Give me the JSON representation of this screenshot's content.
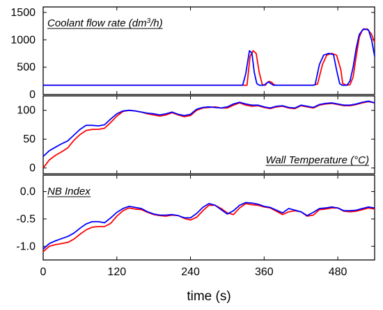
{
  "chart_data": {
    "type": "line",
    "xlabel": "time (s)",
    "x_ticks": [
      0,
      120,
      240,
      360,
      480
    ],
    "xlim": [
      0,
      540
    ],
    "series_colors": {
      "series_a": "#ff0000",
      "series_b": "#0000ff"
    },
    "panels": [
      {
        "id": "coolant",
        "title_html": "Coolant flow rate (dm<tspan baseline-shift=\"super\" font-size=\"10\">3</tspan>/h)",
        "title_text": "Coolant flow rate (dm3/h)",
        "title_position": "top-left",
        "ylim": [
          0,
          1600
        ],
        "y_ticks": [
          0,
          500,
          1000,
          1500
        ],
        "series": [
          {
            "color": "#ff0000",
            "x": [
              0,
              100,
              200,
              300,
              332,
              337,
              342,
              347,
              352,
              357,
              362,
              365,
              368,
              372,
              376,
              380,
              440,
              447,
              455,
              462,
              470,
              478,
              485,
              488,
              495,
              500,
              505,
              510,
              515,
              520,
              528,
              535,
              540
            ],
            "y": [
              170,
              170,
              170,
              170,
              170,
              700,
              800,
              750,
              400,
              180,
              170,
              220,
              240,
              225,
              180,
              170,
              170,
              190,
              550,
              720,
              750,
              720,
              450,
              200,
              170,
              180,
              320,
              700,
              1050,
              1180,
              1200,
              1100,
              950
            ]
          },
          {
            "color": "#0000ff",
            "x": [
              0,
              100,
              200,
              300,
              325,
              330,
              336,
              340,
              344,
              348,
              352,
              360,
              363,
              367,
              371,
              375,
              440,
              443,
              450,
              457,
              465,
              473,
              478,
              483,
              487,
              495,
              500,
              505,
              510,
              515,
              522,
              530,
              535,
              540
            ],
            "y": [
              170,
              170,
              170,
              170,
              170,
              380,
              800,
              760,
              400,
              200,
              170,
              170,
              200,
              230,
              200,
              170,
              170,
              180,
              550,
              720,
              750,
              730,
              450,
              200,
              170,
              170,
              250,
              500,
              850,
              1100,
              1200,
              1180,
              1000,
              700
            ]
          }
        ]
      },
      {
        "id": "wall-temp",
        "title_text": "Wall Temperature (°C)",
        "title_position": "bottom-right",
        "ylim": [
          -10,
          125
        ],
        "y_ticks": [
          0,
          50,
          100
        ],
        "series": [
          {
            "color": "#ff0000",
            "x": [
              0,
              10,
              20,
              30,
              40,
              50,
              60,
              70,
              80,
              90,
              100,
              110,
              120,
              130,
              140,
              150,
              160,
              170,
              180,
              190,
              200,
              210,
              220,
              230,
              240,
              250,
              260,
              270,
              280,
              290,
              300,
              310,
              320,
              330,
              340,
              350,
              360,
              370,
              380,
              390,
              400,
              410,
              420,
              430,
              440,
              450,
              460,
              470,
              480,
              490,
              500,
              510,
              520,
              530,
              540
            ],
            "y": [
              0,
              14,
              22,
              28,
              35,
              48,
              58,
              65,
              67,
              67,
              69,
              79,
              90,
              98,
              100,
              99,
              97,
              94,
              92,
              90,
              92,
              96,
              92,
              89,
              91,
              100,
              104,
              105,
              106,
              104,
              104,
              109,
              113,
              109,
              107,
              108,
              105,
              103,
              106,
              107,
              104,
              103,
              108,
              106,
              104,
              109,
              111,
              112,
              110,
              108,
              108,
              110,
              113,
              115,
              113
            ]
          },
          {
            "color": "#0000ff",
            "x": [
              0,
              10,
              20,
              30,
              40,
              50,
              60,
              70,
              80,
              90,
              100,
              110,
              120,
              130,
              140,
              150,
              160,
              170,
              180,
              190,
              200,
              210,
              220,
              230,
              240,
              250,
              260,
              270,
              280,
              290,
              300,
              310,
              320,
              330,
              340,
              350,
              360,
              370,
              380,
              390,
              400,
              410,
              420,
              430,
              440,
              450,
              460,
              470,
              480,
              490,
              500,
              510,
              520,
              530,
              540
            ],
            "y": [
              20,
              30,
              36,
              42,
              47,
              57,
              67,
              74,
              74,
              73,
              75,
              85,
              94,
              99,
              100,
              99,
              97,
              95,
              94,
              92,
              94,
              97,
              93,
              91,
              93,
              102,
              105,
              106,
              105,
              104,
              106,
              111,
              114,
              111,
              109,
              109,
              106,
              104,
              107,
              108,
              105,
              104,
              109,
              107,
              105,
              110,
              112,
              113,
              111,
              109,
              109,
              111,
              114,
              116,
              113
            ]
          }
        ]
      },
      {
        "id": "nb-index",
        "title_text": "NB  Index",
        "title_position": "top-left",
        "ylim": [
          -1.25,
          0.3
        ],
        "y_ticks": [
          -1.0,
          -0.5,
          0.0
        ],
        "y_tick_labels": [
          "-1.0",
          "-0.5",
          "0.0"
        ],
        "series": [
          {
            "color": "#ff0000",
            "x": [
              0,
              10,
              20,
              30,
              40,
              50,
              60,
              70,
              80,
              90,
              100,
              110,
              120,
              130,
              140,
              150,
              160,
              170,
              180,
              190,
              200,
              210,
              220,
              230,
              240,
              250,
              260,
              270,
              280,
              290,
              300,
              310,
              320,
              330,
              340,
              350,
              360,
              370,
              380,
              390,
              400,
              410,
              420,
              430,
              440,
              450,
              460,
              470,
              480,
              490,
              500,
              510,
              520,
              530,
              540
            ],
            "y": [
              -1.1,
              -1.0,
              -0.97,
              -0.95,
              -0.93,
              -0.87,
              -0.78,
              -0.7,
              -0.65,
              -0.64,
              -0.64,
              -0.58,
              -0.45,
              -0.35,
              -0.3,
              -0.32,
              -0.33,
              -0.38,
              -0.42,
              -0.44,
              -0.45,
              -0.43,
              -0.44,
              -0.49,
              -0.52,
              -0.47,
              -0.35,
              -0.25,
              -0.25,
              -0.31,
              -0.39,
              -0.42,
              -0.3,
              -0.22,
              -0.24,
              -0.25,
              -0.28,
              -0.3,
              -0.36,
              -0.42,
              -0.37,
              -0.35,
              -0.37,
              -0.45,
              -0.43,
              -0.33,
              -0.32,
              -0.3,
              -0.3,
              -0.36,
              -0.37,
              -0.36,
              -0.33,
              -0.3,
              -0.32
            ]
          },
          {
            "color": "#0000ff",
            "x": [
              0,
              10,
              20,
              30,
              40,
              50,
              60,
              70,
              80,
              90,
              100,
              110,
              120,
              130,
              140,
              150,
              160,
              170,
              180,
              190,
              200,
              210,
              220,
              230,
              240,
              250,
              260,
              270,
              280,
              290,
              300,
              310,
              320,
              330,
              340,
              350,
              360,
              370,
              380,
              390,
              400,
              410,
              420,
              430,
              440,
              450,
              460,
              470,
              480,
              490,
              500,
              510,
              520,
              530,
              540
            ],
            "y": [
              -1.05,
              -0.95,
              -0.9,
              -0.86,
              -0.82,
              -0.76,
              -0.67,
              -0.59,
              -0.55,
              -0.55,
              -0.57,
              -0.48,
              -0.38,
              -0.31,
              -0.27,
              -0.29,
              -0.31,
              -0.37,
              -0.41,
              -0.43,
              -0.43,
              -0.42,
              -0.44,
              -0.48,
              -0.48,
              -0.4,
              -0.29,
              -0.22,
              -0.25,
              -0.33,
              -0.41,
              -0.35,
              -0.25,
              -0.2,
              -0.21,
              -0.23,
              -0.27,
              -0.29,
              -0.34,
              -0.39,
              -0.31,
              -0.34,
              -0.37,
              -0.44,
              -0.38,
              -0.31,
              -0.3,
              -0.28,
              -0.3,
              -0.35,
              -0.35,
              -0.34,
              -0.31,
              -0.28,
              -0.3
            ]
          }
        ]
      }
    ]
  }
}
